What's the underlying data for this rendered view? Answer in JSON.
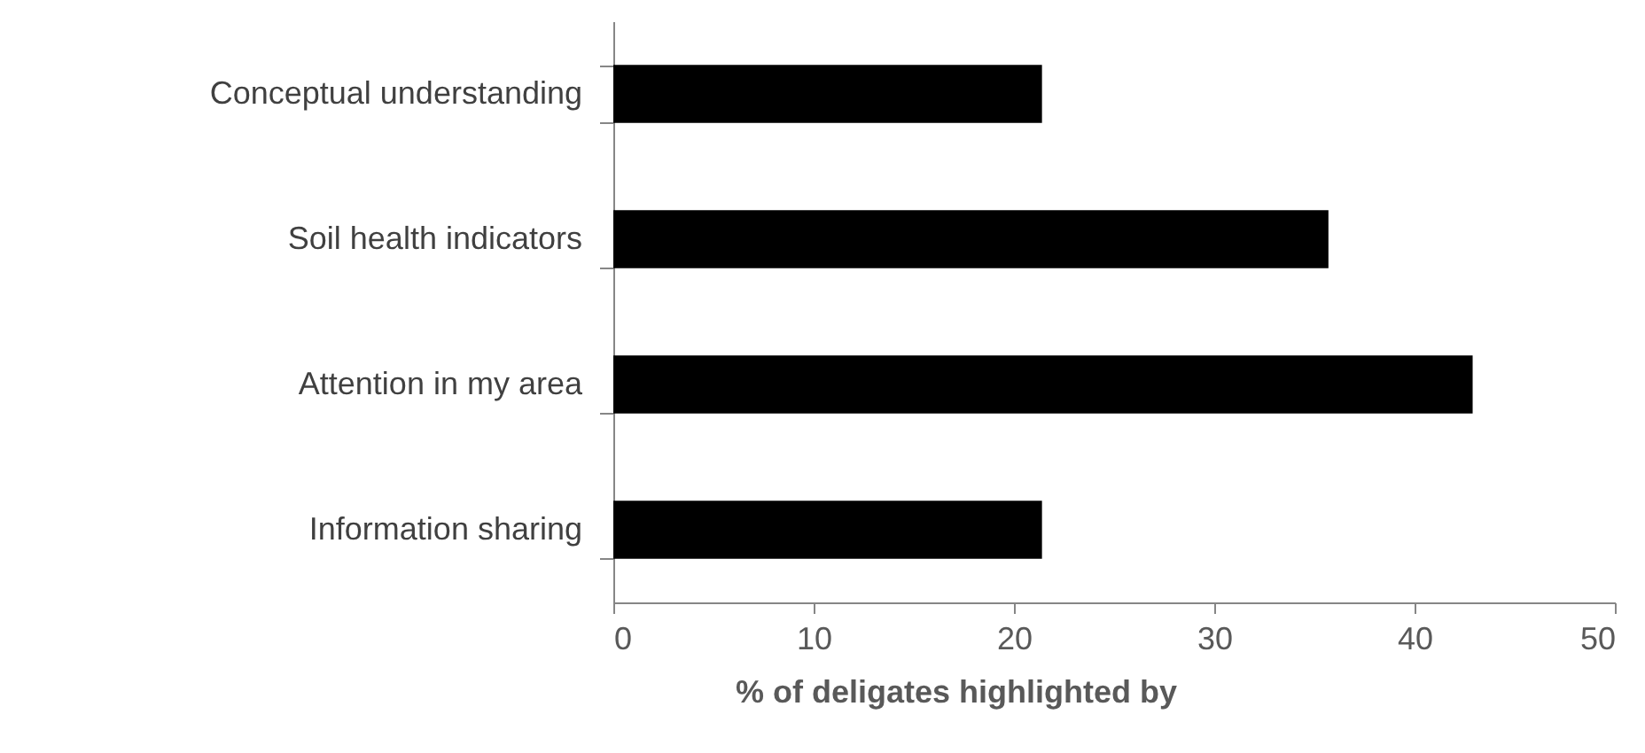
{
  "chart_data": {
    "type": "bar",
    "orientation": "horizontal",
    "xlabel": "% of deligates highlighted by",
    "categories": [
      "Conceptual understanding",
      "Soil health indicators",
      "Attention in my area",
      "Information sharing"
    ],
    "values": [
      21.4,
      35.7,
      42.9,
      21.4
    ],
    "color": "#000000",
    "xlim": [
      0,
      50
    ],
    "xticks": [
      0,
      10,
      20,
      30,
      40,
      50
    ],
    "grid": false
  }
}
